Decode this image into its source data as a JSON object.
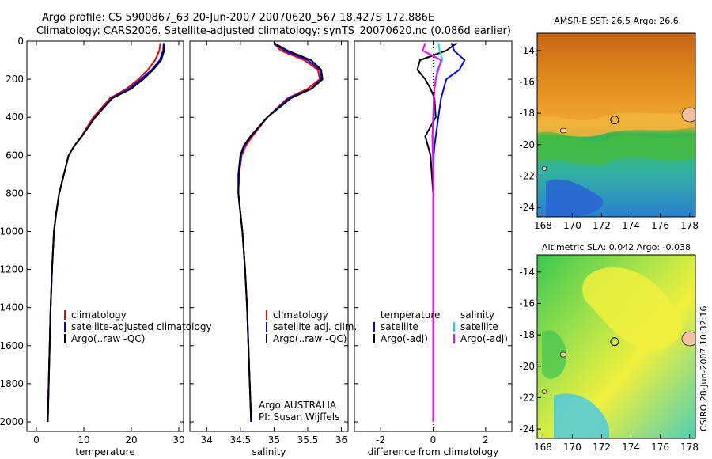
{
  "header": {
    "line1": "Argo profile: CS 5900867_63 20-Jun-2007 20070620_567 18.427S 172.886E",
    "line2": "Climatology: CARS2006. Satellite-adjusted climatology: synTS_20070620.nc (0.086d earlier)"
  },
  "colors": {
    "clim": "#ff0000",
    "sat": "#0000ff",
    "argo": "#000000",
    "sat_sal": "#00e5ee",
    "argo_sal": "#ff00ff"
  },
  "chart_data": [
    {
      "type": "line",
      "id": "temperature",
      "xlabel": "temperature",
      "ylabel": "",
      "xlim": [
        -2,
        31
      ],
      "ylim": [
        2050,
        0
      ],
      "xticks": [
        0,
        10,
        20,
        30
      ],
      "yticks": [
        0,
        200,
        400,
        600,
        800,
        1000,
        1200,
        1400,
        1600,
        1800,
        2000
      ],
      "legend": [
        "climatology",
        "satellite-adjusted climatology",
        "Argo(..raw -QC)"
      ],
      "series": [
        {
          "name": "climatology",
          "color": "clim",
          "x": [
            26.1,
            25.9,
            25.0,
            23.5,
            21.5,
            19.0,
            15.5,
            12.0,
            9.5,
            8.0,
            6.8,
            5.8,
            4.8,
            4.2,
            3.7,
            3.3,
            3.0,
            2.8,
            2.6,
            2.5,
            2.4
          ],
          "y": [
            10,
            50,
            100,
            150,
            200,
            250,
            300,
            400,
            500,
            550,
            600,
            700,
            800,
            900,
            1000,
            1200,
            1400,
            1600,
            1800,
            1900,
            2000
          ]
        },
        {
          "name": "satellite-adjusted climatology",
          "color": "sat",
          "x": [
            26.8,
            26.7,
            26.0,
            24.3,
            22.0,
            19.5,
            15.8,
            12.3,
            9.6,
            8.0,
            6.8,
            5.8,
            4.8,
            4.2,
            3.7,
            3.3,
            3.0,
            2.8,
            2.6,
            2.5,
            2.4
          ],
          "y": [
            10,
            50,
            100,
            150,
            200,
            250,
            300,
            400,
            500,
            550,
            600,
            700,
            800,
            900,
            1000,
            1200,
            1400,
            1600,
            1800,
            1900,
            2000
          ]
        },
        {
          "name": "Argo(..raw -QC)",
          "color": "argo",
          "x": [
            27.0,
            26.9,
            26.3,
            24.6,
            22.5,
            20.0,
            16.0,
            12.4,
            9.6,
            8.0,
            6.8,
            5.8,
            4.8,
            4.2,
            3.7,
            3.3,
            3.0,
            2.8,
            2.6,
            2.5,
            2.4
          ],
          "y": [
            10,
            50,
            100,
            150,
            200,
            250,
            300,
            400,
            500,
            550,
            600,
            700,
            800,
            900,
            1000,
            1200,
            1400,
            1600,
            1800,
            1900,
            2000
          ]
        }
      ]
    },
    {
      "type": "line",
      "id": "salinity",
      "xlabel": "salinity",
      "ylabel": "",
      "xlim": [
        33.75,
        36.1
      ],
      "ylim": [
        2050,
        0
      ],
      "xticks": [
        34,
        34.5,
        35,
        35.5,
        36
      ],
      "yticks": [
        0,
        200,
        400,
        600,
        800,
        1000,
        1200,
        1400,
        1600,
        1800,
        2000
      ],
      "legend": [
        "climatology",
        "satellite adj. clim.",
        "Argo(..raw -QC)"
      ],
      "annotation": [
        "Argo AUSTRALIA",
        "PI: Susan Wijffels"
      ],
      "series": [
        {
          "name": "climatology",
          "color": "clim",
          "x": [
            35.0,
            35.1,
            35.45,
            35.65,
            35.68,
            35.5,
            35.2,
            34.9,
            34.68,
            34.58,
            34.52,
            34.48,
            34.47,
            34.5,
            34.53,
            34.57,
            34.6,
            34.62,
            34.64,
            34.65,
            34.66
          ],
          "y": [
            10,
            50,
            100,
            150,
            200,
            250,
            300,
            400,
            500,
            550,
            600,
            700,
            800,
            900,
            1000,
            1200,
            1400,
            1600,
            1800,
            1900,
            2000
          ]
        },
        {
          "name": "satellite adj. clim.",
          "color": "sat",
          "x": [
            35.0,
            35.15,
            35.5,
            35.68,
            35.7,
            35.55,
            35.22,
            34.9,
            34.66,
            34.56,
            34.51,
            34.48,
            34.47,
            34.5,
            34.53,
            34.57,
            34.6,
            34.62,
            34.64,
            34.65,
            34.66
          ],
          "y": [
            10,
            50,
            100,
            150,
            200,
            250,
            300,
            400,
            500,
            550,
            600,
            700,
            800,
            900,
            1000,
            1200,
            1400,
            1600,
            1800,
            1900,
            2000
          ]
        },
        {
          "name": "Argo(..raw -QC)",
          "color": "argo",
          "x": [
            35.0,
            35.2,
            35.55,
            35.7,
            35.72,
            35.56,
            35.25,
            34.9,
            34.65,
            34.55,
            34.5,
            34.47,
            34.47,
            34.5,
            34.53,
            34.57,
            34.6,
            34.62,
            34.64,
            34.65,
            34.66
          ],
          "y": [
            10,
            50,
            100,
            150,
            200,
            250,
            300,
            400,
            500,
            550,
            600,
            700,
            800,
            900,
            1000,
            1200,
            1400,
            1600,
            1800,
            1900,
            2000
          ]
        }
      ]
    },
    {
      "type": "line",
      "id": "difference",
      "xlabel": "difference from climatology",
      "ylabel": "",
      "xlim": [
        -3,
        3
      ],
      "ylim": [
        2050,
        0
      ],
      "xticks": [
        -2,
        0,
        2
      ],
      "yticks": [
        0,
        200,
        400,
        600,
        800,
        1000,
        1200,
        1400,
        1600,
        1800,
        2000
      ],
      "legend_temperature_title": "temperature",
      "legend_salinity_title": "salinity",
      "legend": [
        "satellite",
        "Argo(-adj)",
        "satellite",
        "Argo(-adj)"
      ],
      "series": [
        {
          "name": "temperature satellite",
          "color": "sat",
          "x": [
            0.7,
            0.8,
            1.2,
            1.0,
            0.5,
            0.4,
            0.3,
            0.2,
            0.1,
            0.05,
            0.02,
            0,
            0,
            0,
            0,
            0,
            0,
            0,
            0,
            0,
            0
          ],
          "y": [
            10,
            50,
            100,
            150,
            200,
            250,
            300,
            400,
            500,
            550,
            600,
            700,
            800,
            900,
            1000,
            1200,
            1400,
            1600,
            1800,
            1900,
            2000
          ]
        },
        {
          "name": "temperature Argo(-adj)",
          "color": "argo",
          "x": [
            0.9,
            0.5,
            -0.5,
            -0.6,
            -0.3,
            -0.1,
            0.05,
            0.1,
            -0.3,
            -0.2,
            -0.1,
            -0.05,
            0,
            0,
            0,
            0,
            0,
            0,
            0,
            0,
            0
          ],
          "y": [
            10,
            50,
            100,
            150,
            200,
            250,
            300,
            400,
            500,
            550,
            600,
            700,
            800,
            900,
            1000,
            1200,
            1400,
            1600,
            1800,
            1900,
            2000
          ]
        },
        {
          "name": "salinity satellite",
          "color": "sat_sal",
          "x": [
            0.2,
            0.25,
            0.35,
            0.15,
            0.1,
            0.05,
            0.03,
            0.02,
            -0.02,
            -0.02,
            -0.01,
            0,
            0,
            0,
            0,
            0,
            0,
            0,
            0,
            0,
            0
          ],
          "y": [
            10,
            50,
            100,
            150,
            200,
            250,
            300,
            400,
            500,
            550,
            600,
            700,
            800,
            900,
            1000,
            1200,
            1400,
            1600,
            1800,
            1900,
            2000
          ]
        },
        {
          "name": "salinity Argo(-adj)",
          "color": "argo_sal",
          "x": [
            -0.3,
            -0.4,
            0.3,
            0.2,
            0.1,
            0.05,
            0.02,
            0,
            -0.03,
            -0.02,
            -0.01,
            0,
            0,
            0,
            0,
            0,
            0,
            0,
            0,
            0,
            0
          ],
          "y": [
            10,
            50,
            100,
            150,
            200,
            250,
            300,
            400,
            500,
            550,
            600,
            700,
            800,
            900,
            1000,
            1200,
            1400,
            1600,
            1800,
            1900,
            2000
          ]
        }
      ]
    },
    {
      "type": "heatmap",
      "id": "sst_map",
      "title": "AMSR-E SST: 26.5 Argo: 26.6",
      "xlim": [
        167.6,
        178.4
      ],
      "ylim": [
        -24.6,
        -12.9
      ],
      "xticks": [
        168,
        170,
        172,
        174,
        176,
        178
      ],
      "yticks": [
        -14,
        -16,
        -18,
        -20,
        -22,
        -24
      ],
      "argo_position": {
        "lon": 172.886,
        "lat": -18.427
      }
    },
    {
      "type": "heatmap",
      "id": "sla_map",
      "title": "Altimetric SLA: 0.042 Argo: -0.038",
      "xlim": [
        167.6,
        178.4
      ],
      "ylim": [
        -24.6,
        -12.9
      ],
      "xticks": [
        168,
        170,
        172,
        174,
        176,
        178
      ],
      "yticks": [
        -14,
        -16,
        -18,
        -20,
        -22,
        -24
      ],
      "argo_position": {
        "lon": 172.886,
        "lat": -18.427
      }
    }
  ],
  "footer": {
    "credit": "CSIRO 28-Jun-2007 10:32:16"
  }
}
